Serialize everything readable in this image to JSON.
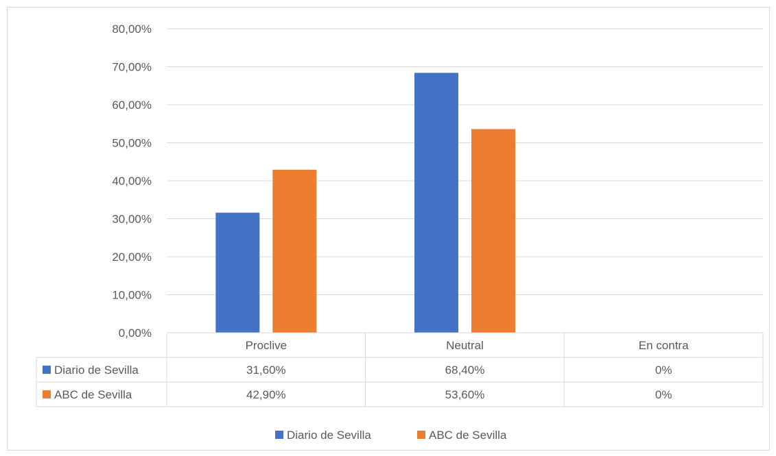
{
  "chart_data": {
    "type": "bar",
    "categories": [
      "Proclive",
      "Neutral",
      "En contra"
    ],
    "series": [
      {
        "name": "Diario de Sevilla",
        "color": "#4472c4",
        "values": [
          31.6,
          68.4,
          0
        ],
        "labels": [
          "31,60%",
          "68,40%",
          "0%"
        ]
      },
      {
        "name": "ABC de Sevilla",
        "color": "#ed7d31",
        "values": [
          42.9,
          53.6,
          0
        ],
        "labels": [
          "42,90%",
          "53,60%",
          "0%"
        ]
      }
    ],
    "ylim": [
      0,
      80
    ],
    "yticks": [
      "0,00%",
      "10,00%",
      "20,00%",
      "30,00%",
      "40,00%",
      "50,00%",
      "60,00%",
      "70,00%",
      "80,00%"
    ],
    "grid": true,
    "legend": "bottom",
    "data_table": true
  }
}
